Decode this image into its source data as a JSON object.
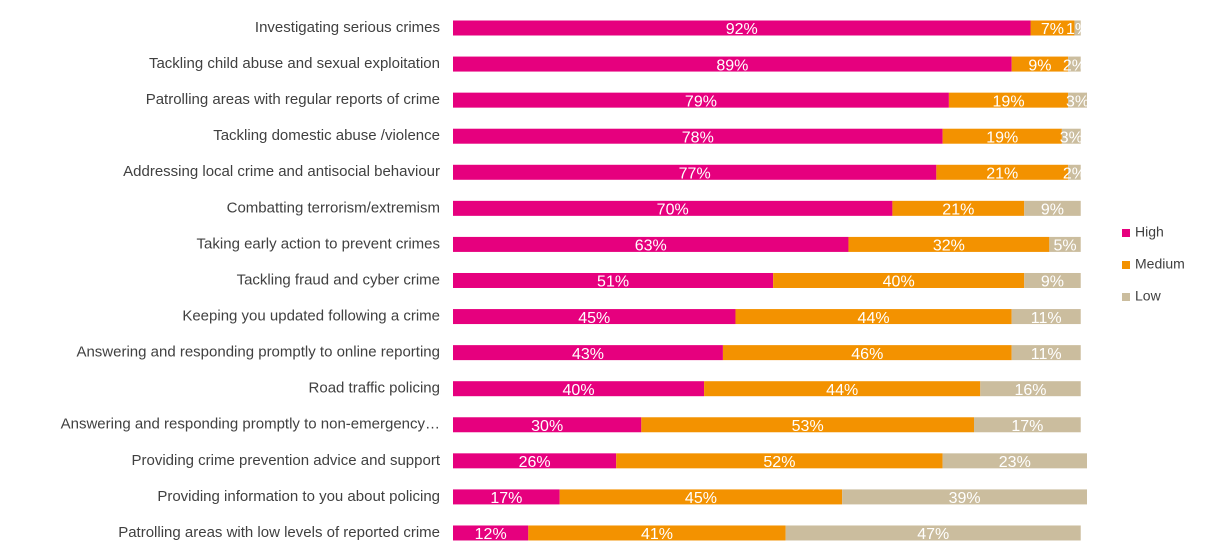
{
  "chart_data": {
    "type": "bar",
    "orientation": "horizontal",
    "stacked": true,
    "categories": [
      "Investigating serious crimes",
      "Tackling child abuse and sexual exploitation",
      "Patrolling areas with regular reports of crime",
      "Tackling domestic abuse /violence",
      "Addressing local crime and antisocial behaviour",
      "Combatting terrorism/extremism",
      "Taking early action to prevent crimes",
      "Tackling fraud and cyber crime",
      "Keeping you updated following a crime",
      "Answering and responding promptly to online reporting",
      "Road traffic policing",
      "Answering and responding promptly to non-emergency…",
      "Providing crime prevention advice and support",
      "Providing information to you about policing",
      "Patrolling areas with low levels of reported crime"
    ],
    "series": [
      {
        "name": "High",
        "color": "#e6007e",
        "values": [
          92,
          89,
          79,
          78,
          77,
          70,
          63,
          51,
          45,
          43,
          40,
          30,
          26,
          17,
          12
        ],
        "value_labels": [
          "92%",
          "89%",
          "79%",
          "78%",
          "77%",
          "70%",
          "63%",
          "51%",
          "45%",
          "43%",
          "40%",
          "30%",
          "26%",
          "17%",
          "12%"
        ]
      },
      {
        "name": "Medium",
        "color": "#f39200",
        "values": [
          7,
          9,
          19,
          19,
          21,
          21,
          32,
          40,
          44,
          46,
          44,
          53,
          52,
          45,
          41
        ],
        "value_labels": [
          "7%",
          "9%",
          "19%",
          "19%",
          "21%",
          "21%",
          "32%",
          "40%",
          "44%",
          "46%",
          "44%",
          "53%",
          "52%",
          "45%",
          "41%"
        ]
      },
      {
        "name": "Low",
        "color": "#cbbd9e",
        "values": [
          1,
          2,
          3,
          3,
          2,
          9,
          5,
          9,
          11,
          11,
          16,
          17,
          23,
          39,
          47
        ],
        "value_labels": [
          "1%",
          "2%",
          "3%",
          "3%",
          "2%",
          "9%",
          "5%",
          "9%",
          "11%",
          "11%",
          "16%",
          "17%",
          "23%",
          "39%",
          "47%"
        ]
      }
    ],
    "legend": "right"
  }
}
